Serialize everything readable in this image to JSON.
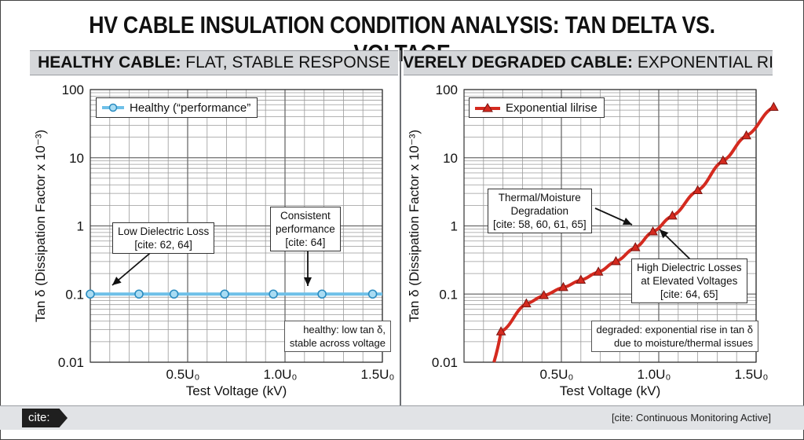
{
  "title": "HV CABLE INSULATION CONDITION ANALYSIS: TAN DELTA VS. VOLTAGE",
  "footer": {
    "cite_tag": "cite:",
    "status": "[cite: Continuous Monitoring Active]"
  },
  "colors": {
    "healthy_line": "#6ec0e8",
    "healthy_marker_edge": "#2b8cc0",
    "degraded_line": "#d42a1f",
    "grid": "#6b6b6b",
    "header_bg": "#d5d7da"
  },
  "panels": [
    {
      "header_bold": "HEALTHY CABLE:",
      "header_rest": " FLAT, STABLE RESPONSE",
      "legend": "Healthy (“performance”",
      "callouts": [
        {
          "lines": [
            "Low Dielectric Loss",
            "[cite: 62, 64]"
          ]
        },
        {
          "lines": [
            "Consistent",
            "performance",
            "[cite: 64]"
          ]
        }
      ],
      "note": [
        "healthy: low tan δ,",
        "stable across voltage"
      ]
    },
    {
      "header_bold": "SEVERELY DEGRADED CABLE:",
      "header_rest": " EXPONENTIAL RISE",
      "legend": "Exponential lilrise",
      "callouts": [
        {
          "lines": [
            "Thermal/Moisture",
            "Degradation",
            "[cite: 58, 60, 61, 65]"
          ]
        },
        {
          "lines": [
            "High Dielectric Losses",
            "at Elevated Voltages",
            "[cite: 64, 65]"
          ]
        }
      ],
      "note": [
        "degraded: exponential rise in tan δ",
        "due to moisture/thermal issues"
      ]
    }
  ],
  "chart_data": [
    {
      "type": "line",
      "xlabel": "Test Voltage (kV)",
      "ylabel": "Tan δ (Dissipation Factor x 10⁻³)",
      "xlim": [
        0,
        1.5
      ],
      "ylim": [
        0.01,
        100
      ],
      "y_scale": "log",
      "x_ticks": [
        0.5,
        1.0,
        1.5
      ],
      "x_tick_labels": [
        "0.5U₀",
        "1.0U₀",
        "1.5U₀"
      ],
      "y_ticks": [
        0.01,
        0.1,
        1,
        10,
        100
      ],
      "y_tick_labels": [
        "0.01",
        "0.1",
        "1",
        "10",
        "100"
      ],
      "grid": true,
      "legend_position": "top-left",
      "series": [
        {
          "name": "Healthy (“performance”",
          "marker": "circle",
          "x": [
            0.0,
            0.25,
            0.43,
            0.69,
            0.94,
            1.19,
            1.45
          ],
          "y": [
            0.1,
            0.1,
            0.1,
            0.1,
            0.1,
            0.1,
            0.1
          ]
        }
      ]
    },
    {
      "type": "line",
      "xlabel": "Test Voltage (kV)",
      "ylabel": "Tan δ (Dissipation Factor x 10⁻³)",
      "xlim": [
        0,
        1.5
      ],
      "ylim": [
        0.01,
        100
      ],
      "y_scale": "log",
      "x_ticks": [
        0.5,
        1.0,
        1.5
      ],
      "x_tick_labels": [
        "0.5U₀",
        "1.0U₀",
        "1.5U₀"
      ],
      "y_ticks": [
        0.01,
        0.1,
        1,
        10,
        100
      ],
      "y_tick_labels": [
        "0.01",
        "0.1",
        "1",
        "10",
        "100"
      ],
      "grid": true,
      "legend_position": "top-left",
      "series": [
        {
          "name": "Exponential lilrise",
          "marker": "triangle",
          "x": [
            0.19,
            0.32,
            0.41,
            0.51,
            0.6,
            0.69,
            0.78,
            0.88,
            0.97,
            1.07,
            1.2,
            1.33,
            1.45,
            1.59
          ],
          "y": [
            0.028,
            0.072,
            0.095,
            0.125,
            0.16,
            0.21,
            0.3,
            0.48,
            0.82,
            1.4,
            3.3,
            9.0,
            21,
            55
          ]
        }
      ]
    }
  ]
}
